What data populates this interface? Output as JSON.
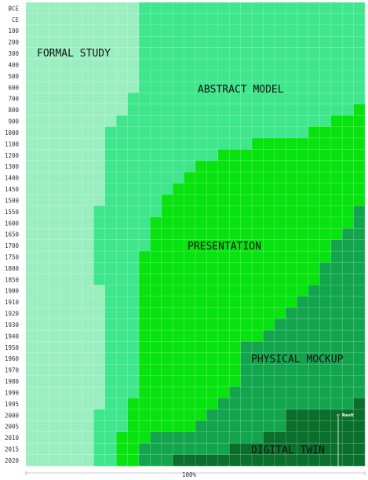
{
  "chart_data": {
    "type": "area",
    "title": "",
    "xlabel": "100%",
    "ylabel": "",
    "x_max_percent": 100,
    "rows": [
      "BCE",
      "CE",
      "100",
      "200",
      "300",
      "400",
      "500",
      "600",
      "700",
      "800",
      "900",
      "1000",
      "1100",
      "1200",
      "1300",
      "1400",
      "1450",
      "1500",
      "1550",
      "1600",
      "1650",
      "1700",
      "1750",
      "1800",
      "1850",
      "1900",
      "1910",
      "1920",
      "1930",
      "1940",
      "1950",
      "1960",
      "1970",
      "1980",
      "1990",
      "1995",
      "2000",
      "2005",
      "2010",
      "2015",
      "2020"
    ],
    "categories": [
      "Formal Study",
      "Abstract Model",
      "Presentation",
      "Physical Mockup",
      "Digital Twin"
    ],
    "category_labels": [
      "FORMAL STUDY",
      "ABSTRACT MODEL",
      "PRESENTATION",
      "PHYSICAL MOCKUP",
      "DIGITAL TWIN"
    ],
    "colors": [
      "#9beec0",
      "#3ee68c",
      "#06e30e",
      "#12a54d",
      "#0a6e2c"
    ],
    "grid": true,
    "cells_per_row": 30,
    "boundaries": [
      [
        10,
        30,
        30,
        30
      ],
      [
        10,
        30,
        30,
        30
      ],
      [
        10,
        30,
        30,
        30
      ],
      [
        10,
        30,
        30,
        30
      ],
      [
        10,
        30,
        30,
        30
      ],
      [
        10,
        30,
        30,
        30
      ],
      [
        10,
        30,
        30,
        30
      ],
      [
        10,
        30,
        30,
        30
      ],
      [
        9,
        30,
        30,
        30
      ],
      [
        9,
        29,
        30,
        30
      ],
      [
        8,
        27,
        30,
        30
      ],
      [
        7,
        25,
        30,
        30
      ],
      [
        7,
        20,
        30,
        30
      ],
      [
        7,
        17,
        30,
        30
      ],
      [
        7,
        15,
        30,
        30
      ],
      [
        7,
        14,
        30,
        30
      ],
      [
        7,
        13,
        30,
        30
      ],
      [
        7,
        12,
        30,
        30
      ],
      [
        6,
        12,
        29,
        30
      ],
      [
        6,
        11,
        29,
        30
      ],
      [
        6,
        11,
        28,
        30
      ],
      [
        6,
        11,
        27,
        30
      ],
      [
        6,
        10,
        27,
        30
      ],
      [
        6,
        10,
        26,
        30
      ],
      [
        6,
        10,
        26,
        30
      ],
      [
        7,
        10,
        25,
        30
      ],
      [
        7,
        10,
        24,
        30
      ],
      [
        7,
        10,
        23,
        30
      ],
      [
        7,
        10,
        22,
        30
      ],
      [
        7,
        10,
        21,
        30
      ],
      [
        7,
        10,
        19,
        30
      ],
      [
        7,
        10,
        19,
        30
      ],
      [
        7,
        10,
        19,
        30
      ],
      [
        7,
        10,
        19,
        30
      ],
      [
        7,
        10,
        18,
        30
      ],
      [
        7,
        9,
        17,
        29
      ],
      [
        6,
        9,
        16,
        23
      ],
      [
        6,
        9,
        15,
        23
      ],
      [
        6,
        8,
        11,
        21
      ],
      [
        6,
        8,
        10,
        18
      ],
      [
        6,
        8,
        10,
        13
      ]
    ],
    "annotations": [
      {
        "label": "Revit",
        "row": "2000"
      }
    ]
  }
}
